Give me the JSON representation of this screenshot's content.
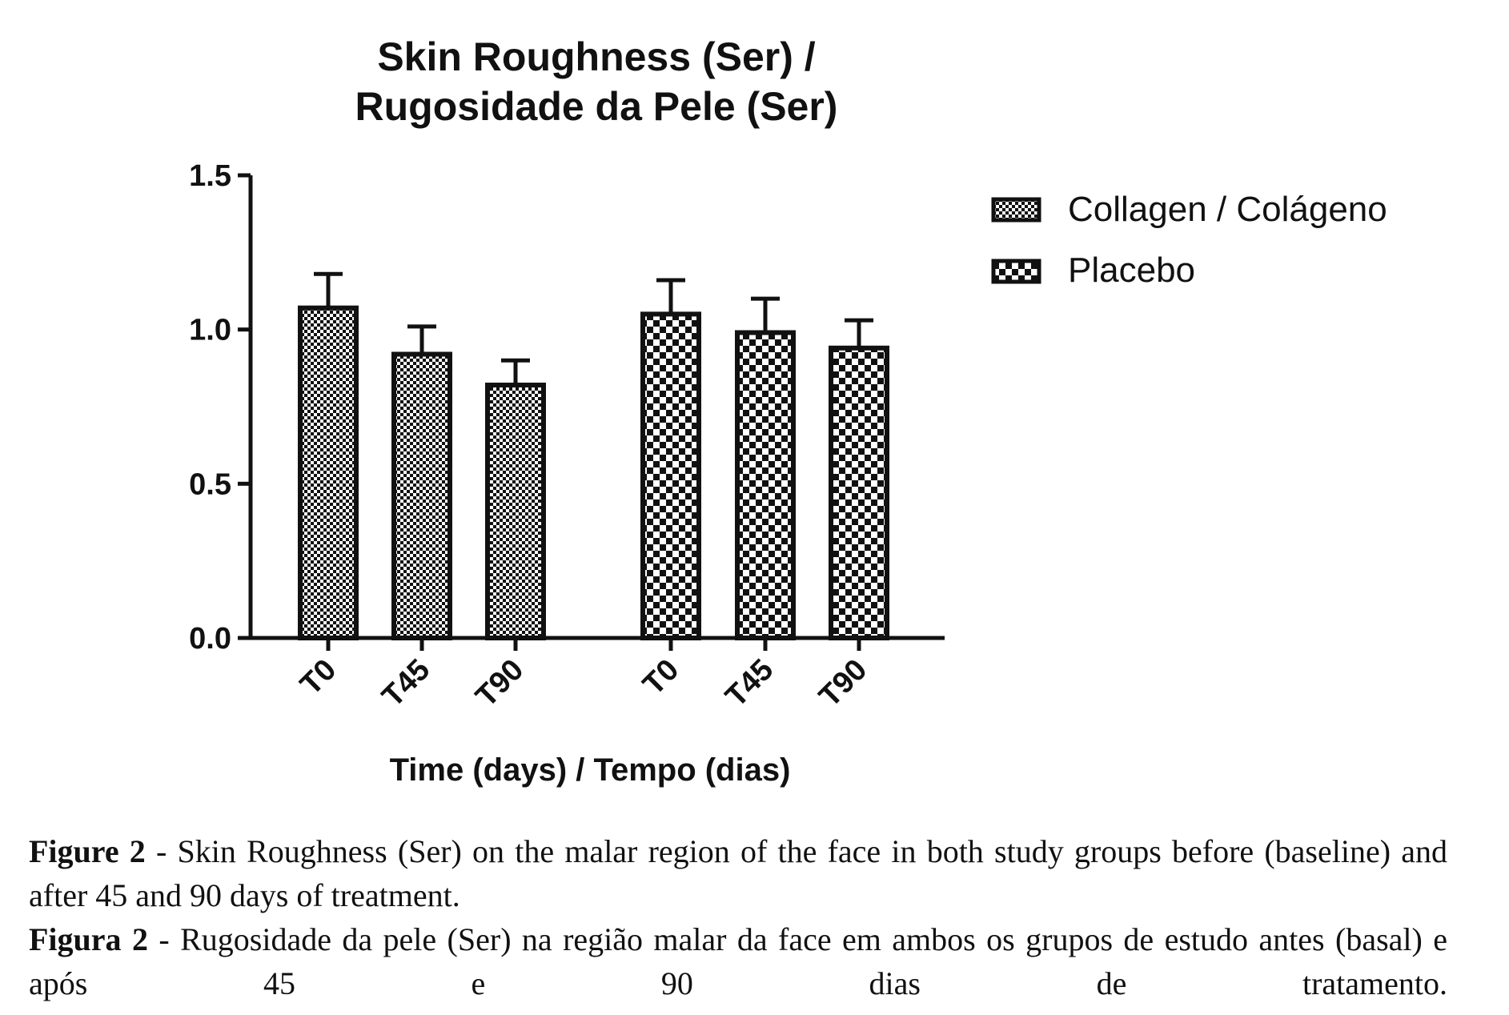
{
  "chart_data": {
    "type": "bar",
    "title_lines": [
      "Skin Roughness (Ser) /",
      "Rugosidade da Pele (Ser)"
    ],
    "xlabel": "Time (days) / Tempo (dias)",
    "ylabel": "",
    "ylim": [
      0,
      1.5
    ],
    "yticks": [
      "0.0",
      "0.5",
      "1.0",
      "1.5"
    ],
    "ytick_values": [
      0,
      0.5,
      1.0,
      1.5
    ],
    "legend_position": "top-right",
    "series": [
      {
        "name": "Collagen / Colágeno",
        "pattern": "fine-checker",
        "categories": [
          "T0",
          "T45",
          "T90"
        ],
        "values": [
          1.07,
          0.92,
          0.82
        ],
        "errors": [
          0.11,
          0.09,
          0.08
        ]
      },
      {
        "name": "Placebo",
        "pattern": "coarse-checker",
        "categories": [
          "T0",
          "T45",
          "T90"
        ],
        "values": [
          1.05,
          0.99,
          0.94
        ],
        "errors": [
          0.11,
          0.11,
          0.09
        ]
      }
    ],
    "colors": {
      "ink": "#111111",
      "background": "#ffffff"
    }
  },
  "caption": {
    "en_label": "Figure 2",
    "en_text": " - Skin Roughness (Ser) on the malar region of the face in both study groups before (baseline) and after 45 and 90 days of treatment.",
    "pt_label": "Figura 2",
    "pt_text": " - Rugosidade da pele (Ser) na região malar da face em ambos os grupos de estudo antes (basal) e após 45 e 90 dias de tratamento."
  }
}
